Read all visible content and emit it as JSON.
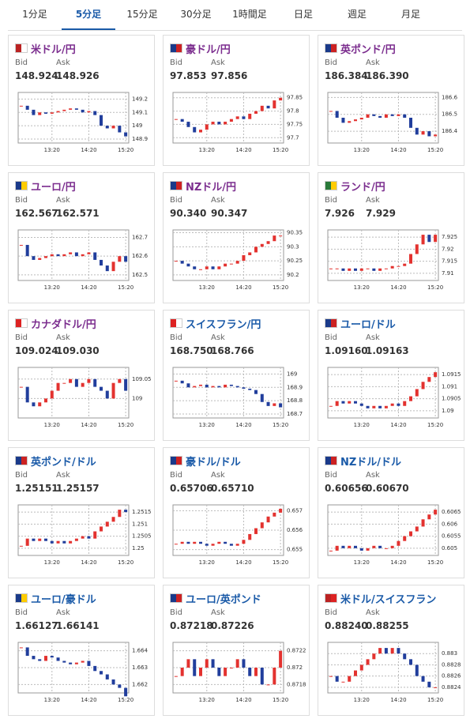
{
  "tabs": [
    "1分足",
    "5分足",
    "15分足",
    "30分足",
    "1時間足",
    "日足",
    "週足",
    "月足"
  ],
  "active_tab": 1,
  "bid_label": "Bid",
  "ask_label": "Ask",
  "time_axis": [
    null,
    null,
    null,
    null,
    null,
    "13:20",
    null,
    null,
    null,
    null,
    null,
    "14:20",
    null,
    null,
    null,
    null,
    null,
    "15:20"
  ],
  "panels": [
    {
      "title": "米ドル/円",
      "color": "#7b2d8e",
      "bid": "148.924",
      "ask": "148.926",
      "chart_data": {
        "type": "candlestick",
        "ylim": [
          148.87,
          149.25
        ],
        "yticks": [
          149.2,
          149.1,
          149,
          148.9
        ],
        "values": [
          149.15,
          149.12,
          149.08,
          149.1,
          149.09,
          149.1,
          149.11,
          149.12,
          149.13,
          149.12,
          149.1,
          149.11,
          149.08,
          149.0,
          148.98,
          149.0,
          148.95,
          148.92
        ]
      }
    },
    {
      "title": "豪ドル/円",
      "color": "#7b2d8e",
      "bid": "97.853",
      "ask": "97.856",
      "chart_data": {
        "type": "candlestick",
        "ylim": [
          97.68,
          97.87
        ],
        "yticks": [
          97.85,
          97.8,
          97.75,
          97.7
        ],
        "values": [
          97.77,
          97.76,
          97.74,
          97.72,
          97.73,
          97.75,
          97.76,
          97.75,
          97.76,
          97.77,
          97.78,
          97.77,
          97.79,
          97.8,
          97.82,
          97.81,
          97.84,
          97.85
        ]
      }
    },
    {
      "title": "英ポンド/円",
      "color": "#7b2d8e",
      "bid": "186.384",
      "ask": "186.390",
      "chart_data": {
        "type": "candlestick",
        "ylim": [
          186.33,
          186.63
        ],
        "yticks": [
          186.6,
          186.5,
          186.4
        ],
        "values": [
          186.52,
          186.48,
          186.45,
          186.46,
          186.47,
          186.48,
          186.5,
          186.49,
          186.48,
          186.5,
          186.49,
          186.5,
          186.48,
          186.42,
          186.38,
          186.4,
          186.37,
          186.38
        ]
      }
    },
    {
      "title": "ユーロ/円",
      "color": "#7b2d8e",
      "bid": "162.567",
      "ask": "162.571",
      "chart_data": {
        "type": "candlestick",
        "ylim": [
          162.47,
          162.74
        ],
        "yticks": [
          162.7,
          162.6,
          162.5
        ],
        "values": [
          162.66,
          162.6,
          162.58,
          162.59,
          162.6,
          162.61,
          162.6,
          162.61,
          162.62,
          162.6,
          162.61,
          162.62,
          162.58,
          162.55,
          162.52,
          162.57,
          162.6,
          162.57
        ]
      }
    },
    {
      "title": "NZドル/円",
      "color": "#7b2d8e",
      "bid": "90.340",
      "ask": "90.347",
      "chart_data": {
        "type": "candlestick",
        "ylim": [
          90.18,
          90.36
        ],
        "yticks": [
          90.35,
          90.3,
          90.25,
          90.2
        ],
        "values": [
          90.25,
          90.24,
          90.23,
          90.22,
          90.22,
          90.23,
          90.22,
          90.23,
          90.24,
          90.24,
          90.25,
          90.27,
          90.28,
          90.3,
          90.31,
          90.32,
          90.34,
          90.34
        ]
      }
    },
    {
      "title": "ランド/円",
      "color": "#7b2d8e",
      "bid": "7.926",
      "ask": "7.929",
      "chart_data": {
        "type": "candlestick",
        "ylim": [
          7.907,
          7.928
        ],
        "yticks": [
          7.925,
          7.92,
          7.915,
          7.91
        ],
        "values": [
          7.912,
          7.912,
          7.911,
          7.912,
          7.911,
          7.912,
          7.912,
          7.911,
          7.912,
          7.912,
          7.913,
          7.913,
          7.914,
          7.918,
          7.922,
          7.926,
          7.923,
          7.926
        ]
      }
    },
    {
      "title": "カナダドル/円",
      "color": "#7b2d8e",
      "bid": "109.024",
      "ask": "109.030",
      "chart_data": {
        "type": "candlestick",
        "ylim": [
          108.95,
          109.08
        ],
        "yticks": [
          109.05,
          109
        ],
        "values": [
          109.03,
          108.99,
          108.98,
          108.99,
          109.0,
          109.02,
          109.04,
          109.04,
          109.05,
          109.03,
          109.04,
          109.05,
          109.03,
          109.02,
          109.0,
          109.04,
          109.05,
          109.02
        ]
      }
    },
    {
      "title": "スイスフラン/円",
      "color": "#1a5aa8",
      "bid": "168.750",
      "ask": "168.766",
      "chart_data": {
        "type": "candlestick",
        "ylim": [
          168.67,
          169.05
        ],
        "yticks": [
          169,
          168.9,
          168.8,
          168.7
        ],
        "values": [
          168.95,
          168.93,
          168.9,
          168.91,
          168.92,
          168.9,
          168.91,
          168.9,
          168.92,
          168.91,
          168.9,
          168.89,
          168.88,
          168.85,
          168.79,
          168.76,
          168.78,
          168.75
        ]
      }
    },
    {
      "title": "ユーロ/ドル",
      "color": "#1a5aa8",
      "bid": "1.09160",
      "ask": "1.09163",
      "chart_data": {
        "type": "candlestick",
        "ylim": [
          1.0897,
          1.0918
        ],
        "yticks": [
          1.0915,
          1.091,
          1.0905,
          1.09
        ],
        "values": [
          1.0902,
          1.0904,
          1.0903,
          1.0904,
          1.0903,
          1.0902,
          1.0901,
          1.0902,
          1.0901,
          1.0902,
          1.0903,
          1.0902,
          1.0904,
          1.0906,
          1.0909,
          1.0912,
          1.0914,
          1.0916
        ]
      }
    },
    {
      "title": "英ポンド/ドル",
      "color": "#1a5aa8",
      "bid": "1.25151",
      "ask": "1.25157",
      "chart_data": {
        "type": "candlestick",
        "ylim": [
          1.2497,
          1.2518
        ],
        "yticks": [
          1.2515,
          1.251,
          1.2505,
          1.25
        ],
        "values": [
          1.2501,
          1.2504,
          1.2503,
          1.2504,
          1.2503,
          1.2502,
          1.2503,
          1.2502,
          1.2503,
          1.2504,
          1.2505,
          1.2504,
          1.2507,
          1.2509,
          1.2511,
          1.2513,
          1.2516,
          1.2515
        ]
      }
    },
    {
      "title": "豪ドル/ドル",
      "color": "#1a5aa8",
      "bid": "0.65706",
      "ask": "0.65710",
      "chart_data": {
        "type": "candlestick",
        "ylim": [
          0.6547,
          0.6573
        ],
        "yticks": [
          0.657,
          0.656,
          0.655
        ],
        "values": [
          0.6553,
          0.6554,
          0.6553,
          0.6554,
          0.6553,
          0.6552,
          0.6553,
          0.6554,
          0.6553,
          0.6552,
          0.6553,
          0.6555,
          0.6558,
          0.6561,
          0.6564,
          0.6567,
          0.6569,
          0.6571
        ]
      }
    },
    {
      "title": "NZドル/ドル",
      "color": "#1a5aa8",
      "bid": "0.60656",
      "ask": "0.60670",
      "chart_data": {
        "type": "candlestick",
        "ylim": [
          0.6047,
          0.6068
        ],
        "yticks": [
          0.6065,
          0.606,
          0.6055,
          0.605
        ],
        "values": [
          0.6049,
          0.6051,
          0.605,
          0.6051,
          0.605,
          0.6049,
          0.605,
          0.6051,
          0.605,
          0.605,
          0.6051,
          0.6053,
          0.6055,
          0.6057,
          0.6059,
          0.6062,
          0.6064,
          0.6066
        ]
      }
    },
    {
      "title": "ユーロ/豪ドル",
      "color": "#1a5aa8",
      "bid": "1.66127",
      "ask": "1.66141",
      "chart_data": {
        "type": "candlestick",
        "ylim": [
          1.6615,
          1.6645
        ],
        "yticks": [
          1.664,
          1.663,
          1.662
        ],
        "values": [
          1.6642,
          1.6637,
          1.6635,
          1.6634,
          1.6637,
          1.6636,
          1.6634,
          1.6633,
          1.6632,
          1.6633,
          1.6634,
          1.6631,
          1.6628,
          1.6626,
          1.6623,
          1.662,
          1.6618,
          1.6613
        ]
      }
    },
    {
      "title": "ユーロ/英ポンド",
      "color": "#1a5aa8",
      "bid": "0.87218",
      "ask": "0.87226",
      "chart_data": {
        "type": "candlestick",
        "ylim": [
          0.8717,
          0.8723
        ],
        "yticks": [
          0.8722,
          0.872,
          0.8718
        ],
        "values": [
          0.8719,
          0.872,
          0.8721,
          0.8719,
          0.872,
          0.8721,
          0.872,
          0.8719,
          0.872,
          0.872,
          0.8721,
          0.872,
          0.8719,
          0.872,
          0.8718,
          0.8718,
          0.872,
          0.8722
        ]
      }
    },
    {
      "title": "米ドル/スイスフラン",
      "color": "#1a5aa8",
      "bid": "0.88240",
      "ask": "0.88255",
      "chart_data": {
        "type": "candlestick",
        "ylim": [
          0.8823,
          0.8832
        ],
        "yticks": [
          0.883,
          0.8828,
          0.8826,
          0.8824
        ],
        "values": [
          0.8826,
          0.8825,
          0.8825,
          0.8826,
          0.8827,
          0.8828,
          0.8829,
          0.883,
          0.8831,
          0.883,
          0.8831,
          0.883,
          0.8829,
          0.8828,
          0.8826,
          0.8825,
          0.8824,
          0.8824
        ]
      }
    }
  ]
}
